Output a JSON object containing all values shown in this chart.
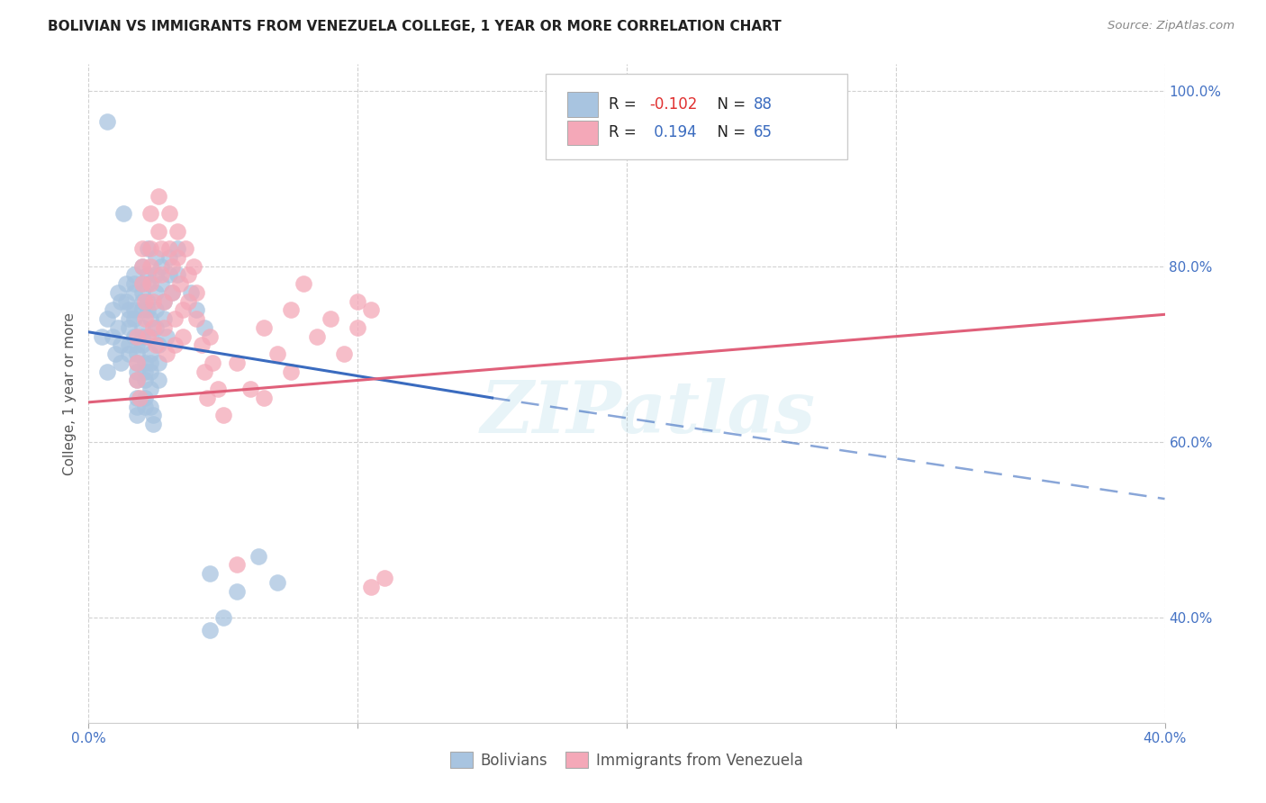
{
  "title": "BOLIVIAN VS IMMIGRANTS FROM VENEZUELA COLLEGE, 1 YEAR OR MORE CORRELATION CHART",
  "source": "Source: ZipAtlas.com",
  "ylabel": "College, 1 year or more",
  "watermark": "ZIPatlas",
  "legend_label1": "Bolivians",
  "legend_label2": "Immigrants from Venezuela",
  "r1": "-0.102",
  "n1": "88",
  "r2": "0.194",
  "n2": "65",
  "blue_color": "#a8c4e0",
  "pink_color": "#f4a8b8",
  "blue_line_color": "#3a6bbf",
  "pink_line_color": "#e0607a",
  "blue_scatter": [
    [
      0.5,
      72.0
    ],
    [
      0.7,
      68.0
    ],
    [
      0.7,
      74.0
    ],
    [
      0.9,
      75.0
    ],
    [
      0.9,
      72.0
    ],
    [
      1.0,
      70.0
    ],
    [
      1.1,
      73.0
    ],
    [
      1.1,
      77.0
    ],
    [
      1.2,
      76.0
    ],
    [
      1.2,
      71.0
    ],
    [
      1.2,
      69.0
    ],
    [
      1.4,
      78.0
    ],
    [
      1.4,
      76.0
    ],
    [
      1.5,
      75.0
    ],
    [
      1.5,
      74.0
    ],
    [
      1.5,
      73.0
    ],
    [
      1.5,
      71.0
    ],
    [
      1.5,
      70.0
    ],
    [
      1.7,
      79.0
    ],
    [
      1.7,
      78.0
    ],
    [
      1.7,
      77.0
    ],
    [
      1.7,
      75.0
    ],
    [
      1.7,
      74.0
    ],
    [
      1.7,
      72.0
    ],
    [
      1.8,
      71.0
    ],
    [
      1.8,
      70.0
    ],
    [
      1.8,
      69.0
    ],
    [
      1.8,
      68.0
    ],
    [
      1.8,
      67.0
    ],
    [
      1.8,
      65.0
    ],
    [
      1.8,
      64.0
    ],
    [
      1.8,
      63.0
    ],
    [
      2.0,
      80.0
    ],
    [
      2.0,
      78.0
    ],
    [
      2.0,
      77.0
    ],
    [
      2.0,
      76.0
    ],
    [
      2.0,
      75.0
    ],
    [
      2.0,
      73.0
    ],
    [
      2.0,
      72.0
    ],
    [
      2.0,
      71.0
    ],
    [
      2.1,
      69.0
    ],
    [
      2.1,
      68.0
    ],
    [
      2.1,
      67.0
    ],
    [
      2.1,
      65.0
    ],
    [
      2.1,
      64.0
    ],
    [
      2.2,
      82.0
    ],
    [
      2.2,
      79.0
    ],
    [
      2.2,
      78.0
    ],
    [
      2.2,
      76.0
    ],
    [
      2.2,
      75.0
    ],
    [
      2.3,
      74.0
    ],
    [
      2.3,
      72.0
    ],
    [
      2.3,
      70.0
    ],
    [
      2.3,
      69.0
    ],
    [
      2.3,
      68.0
    ],
    [
      2.3,
      66.0
    ],
    [
      2.3,
      64.0
    ],
    [
      2.4,
      63.0
    ],
    [
      2.4,
      62.0
    ],
    [
      2.5,
      81.0
    ],
    [
      2.5,
      79.0
    ],
    [
      2.5,
      77.0
    ],
    [
      2.5,
      75.0
    ],
    [
      2.5,
      73.0
    ],
    [
      2.6,
      71.0
    ],
    [
      2.6,
      69.0
    ],
    [
      2.6,
      67.0
    ],
    [
      2.7,
      80.0
    ],
    [
      2.7,
      78.0
    ],
    [
      2.8,
      76.0
    ],
    [
      2.8,
      74.0
    ],
    [
      2.9,
      72.0
    ],
    [
      3.0,
      81.0
    ],
    [
      3.0,
      79.0
    ],
    [
      3.1,
      77.0
    ],
    [
      3.3,
      82.0
    ],
    [
      3.3,
      79.0
    ],
    [
      3.8,
      77.0
    ],
    [
      4.0,
      75.0
    ],
    [
      4.3,
      73.0
    ],
    [
      4.5,
      45.0
    ],
    [
      4.5,
      38.5
    ],
    [
      5.0,
      40.0
    ],
    [
      5.5,
      43.0
    ],
    [
      6.3,
      47.0
    ],
    [
      7.0,
      44.0
    ],
    [
      0.7,
      96.5
    ],
    [
      1.3,
      86.0
    ]
  ],
  "pink_scatter": [
    [
      1.8,
      72.0
    ],
    [
      1.8,
      69.0
    ],
    [
      1.8,
      67.0
    ],
    [
      1.9,
      65.0
    ],
    [
      2.0,
      82.0
    ],
    [
      2.0,
      80.0
    ],
    [
      2.0,
      78.0
    ],
    [
      2.1,
      76.0
    ],
    [
      2.1,
      74.0
    ],
    [
      2.2,
      72.0
    ],
    [
      2.3,
      86.0
    ],
    [
      2.3,
      82.0
    ],
    [
      2.3,
      80.0
    ],
    [
      2.3,
      78.0
    ],
    [
      2.4,
      76.0
    ],
    [
      2.4,
      73.0
    ],
    [
      2.5,
      71.0
    ],
    [
      2.6,
      88.0
    ],
    [
      2.6,
      84.0
    ],
    [
      2.7,
      82.0
    ],
    [
      2.7,
      79.0
    ],
    [
      2.8,
      76.0
    ],
    [
      2.8,
      73.0
    ],
    [
      2.9,
      70.0
    ],
    [
      3.0,
      86.0
    ],
    [
      3.0,
      82.0
    ],
    [
      3.1,
      80.0
    ],
    [
      3.1,
      77.0
    ],
    [
      3.2,
      74.0
    ],
    [
      3.2,
      71.0
    ],
    [
      3.3,
      84.0
    ],
    [
      3.3,
      81.0
    ],
    [
      3.4,
      78.0
    ],
    [
      3.5,
      75.0
    ],
    [
      3.5,
      72.0
    ],
    [
      3.6,
      82.0
    ],
    [
      3.7,
      79.0
    ],
    [
      3.7,
      76.0
    ],
    [
      3.9,
      80.0
    ],
    [
      4.0,
      77.0
    ],
    [
      4.0,
      74.0
    ],
    [
      4.2,
      71.0
    ],
    [
      4.3,
      68.0
    ],
    [
      4.4,
      65.0
    ],
    [
      4.5,
      72.0
    ],
    [
      4.6,
      69.0
    ],
    [
      4.8,
      66.0
    ],
    [
      5.0,
      63.0
    ],
    [
      5.5,
      69.0
    ],
    [
      5.5,
      46.0
    ],
    [
      6.0,
      66.0
    ],
    [
      6.5,
      65.0
    ],
    [
      7.0,
      70.0
    ],
    [
      7.5,
      68.0
    ],
    [
      8.5,
      72.0
    ],
    [
      9.0,
      74.0
    ],
    [
      9.5,
      70.0
    ],
    [
      10.0,
      76.0
    ],
    [
      10.0,
      73.0
    ],
    [
      10.5,
      75.0
    ],
    [
      10.5,
      43.5
    ],
    [
      11.0,
      44.5
    ],
    [
      8.0,
      78.0
    ],
    [
      7.5,
      75.0
    ],
    [
      6.5,
      73.0
    ]
  ],
  "xlim": [
    0.0,
    40.0
  ],
  "ylim": [
    28.0,
    103.0
  ],
  "blue_trend": [
    0.0,
    72.5,
    15.0,
    65.0
  ],
  "blue_dash": [
    15.0,
    65.0,
    40.0,
    53.5
  ],
  "pink_trend": [
    0.0,
    64.5,
    40.0,
    74.5
  ],
  "x_tick_positions": [
    0.0,
    10.0,
    20.0,
    30.0,
    40.0
  ],
  "x_tick_labels": [
    "0.0%",
    "",
    "",
    "",
    "40.0%"
  ],
  "y_tick_positions": [
    40.0,
    60.0,
    80.0,
    100.0
  ],
  "y_tick_labels": [
    "40.0%",
    "60.0%",
    "80.0%",
    "100.0%"
  ],
  "grid_color": "#cccccc",
  "bg_color": "#ffffff"
}
